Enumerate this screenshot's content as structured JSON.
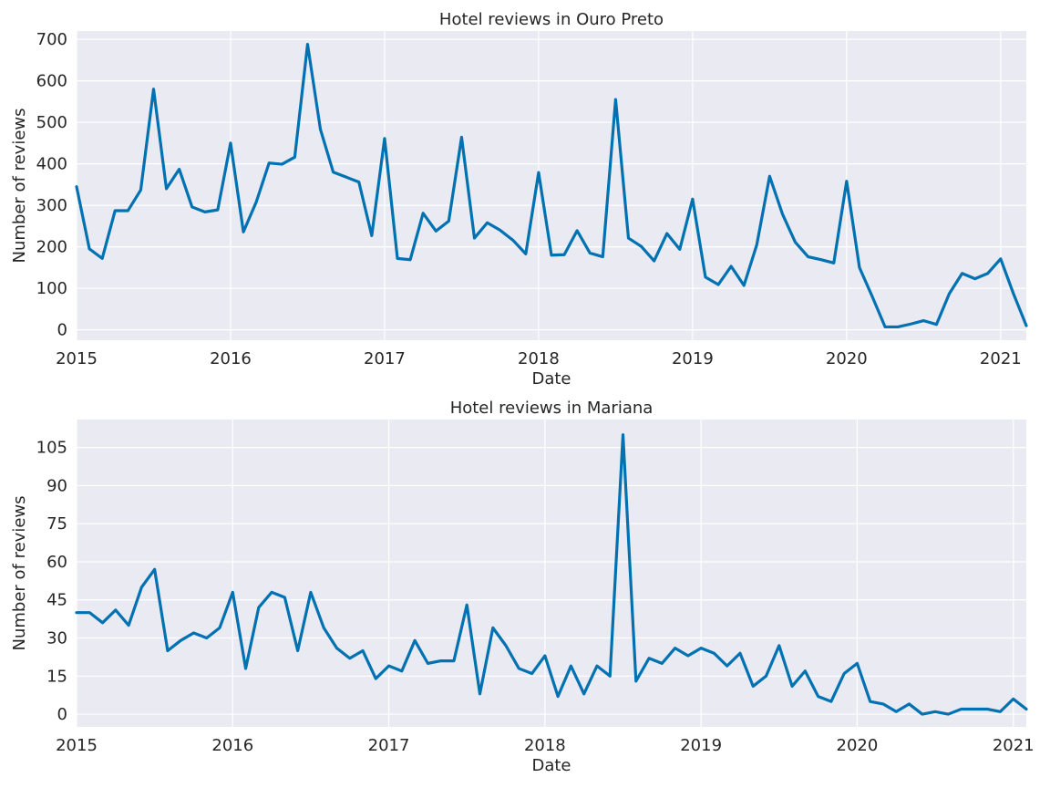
{
  "chart_data": [
    {
      "type": "line",
      "title": "Hotel reviews in Ouro Preto",
      "xlabel": "Date",
      "ylabel": "Number of reviews",
      "xlim": [
        "2015-01",
        "2021-03"
      ],
      "ylim": [
        -25,
        720
      ],
      "x_ticks": [
        "2015",
        "2016",
        "2017",
        "2018",
        "2019",
        "2020",
        "2021"
      ],
      "y_ticks": [
        0,
        100,
        200,
        300,
        400,
        500,
        600,
        700
      ],
      "grid": true,
      "line_color": "#0072b2",
      "background_color": "#eaeaf2",
      "x": [
        "2015-01",
        "2015-02",
        "2015-03",
        "2015-04",
        "2015-05",
        "2015-06",
        "2015-07",
        "2015-08",
        "2015-09",
        "2015-10",
        "2015-11",
        "2015-12",
        "2016-01",
        "2016-02",
        "2016-03",
        "2016-04",
        "2016-05",
        "2016-06",
        "2016-07",
        "2016-08",
        "2016-09",
        "2016-10",
        "2016-11",
        "2016-12",
        "2017-01",
        "2017-02",
        "2017-03",
        "2017-04",
        "2017-05",
        "2017-06",
        "2017-07",
        "2017-08",
        "2017-09",
        "2017-10",
        "2017-11",
        "2017-12",
        "2018-01",
        "2018-02",
        "2018-03",
        "2018-04",
        "2018-05",
        "2018-06",
        "2018-07",
        "2018-08",
        "2018-09",
        "2018-10",
        "2018-11",
        "2018-12",
        "2019-01",
        "2019-02",
        "2019-03",
        "2019-04",
        "2019-05",
        "2019-06",
        "2019-07",
        "2019-08",
        "2019-09",
        "2019-10",
        "2019-11",
        "2019-12",
        "2020-01",
        "2020-02",
        "2020-03",
        "2020-04",
        "2020-05",
        "2020-06",
        "2020-07",
        "2020-08",
        "2020-09",
        "2020-10",
        "2020-11",
        "2020-12",
        "2021-01",
        "2021-02",
        "2021-03"
      ],
      "series": [
        {
          "values": [
            345,
            195,
            172,
            287,
            287,
            337,
            580,
            340,
            387,
            296,
            284,
            289,
            450,
            236,
            308,
            402,
            399,
            416,
            688,
            483,
            380,
            368,
            356,
            227,
            461,
            172,
            169,
            281,
            238,
            262,
            464,
            221,
            258,
            240,
            216,
            183,
            379,
            180,
            181,
            239,
            185,
            176,
            555,
            221,
            201,
            166,
            232,
            194,
            315,
            127,
            109,
            153,
            107,
            205,
            370,
            279,
            211,
            176,
            169,
            161,
            358,
            150,
            80,
            7,
            7,
            14,
            22,
            13,
            87,
            136,
            123,
            136,
            171,
            87,
            10
          ]
        }
      ]
    },
    {
      "type": "line",
      "title": "Hotel reviews in Mariana",
      "xlabel": "Date",
      "ylabel": "Number of reviews",
      "xlim": [
        "2015-01",
        "2021-02"
      ],
      "ylim": [
        -5,
        116
      ],
      "x_ticks": [
        "2015",
        "2016",
        "2017",
        "2018",
        "2019",
        "2020",
        "2021"
      ],
      "y_ticks": [
        0,
        15,
        30,
        45,
        60,
        75,
        90,
        105
      ],
      "grid": true,
      "line_color": "#0072b2",
      "background_color": "#eaeaf2",
      "x": [
        "2015-01",
        "2015-02",
        "2015-03",
        "2015-04",
        "2015-05",
        "2015-06",
        "2015-07",
        "2015-08",
        "2015-09",
        "2015-10",
        "2015-11",
        "2015-12",
        "2016-01",
        "2016-02",
        "2016-03",
        "2016-04",
        "2016-05",
        "2016-06",
        "2016-07",
        "2016-08",
        "2016-09",
        "2016-10",
        "2016-11",
        "2016-12",
        "2017-01",
        "2017-02",
        "2017-03",
        "2017-04",
        "2017-05",
        "2017-06",
        "2017-07",
        "2017-08",
        "2017-09",
        "2017-10",
        "2017-11",
        "2017-12",
        "2018-01",
        "2018-02",
        "2018-03",
        "2018-04",
        "2018-05",
        "2018-06",
        "2018-07",
        "2018-08",
        "2018-09",
        "2018-10",
        "2018-11",
        "2018-12",
        "2019-01",
        "2019-02",
        "2019-03",
        "2019-04",
        "2019-05",
        "2019-06",
        "2019-07",
        "2019-08",
        "2019-09",
        "2019-10",
        "2019-11",
        "2019-12",
        "2020-01",
        "2020-02",
        "2020-03",
        "2020-04",
        "2020-05",
        "2020-06",
        "2020-07",
        "2020-08",
        "2020-09",
        "2020-10",
        "2020-11",
        "2020-12",
        "2021-01",
        "2021-02"
      ],
      "series": [
        {
          "values": [
            40,
            40,
            36,
            41,
            35,
            50,
            57,
            25,
            29,
            32,
            30,
            34,
            48,
            18,
            42,
            48,
            46,
            25,
            48,
            34,
            26,
            22,
            25,
            14,
            19,
            17,
            29,
            20,
            21,
            21,
            43,
            8,
            34,
            27,
            18,
            16,
            23,
            7,
            19,
            8,
            19,
            15,
            110,
            13,
            22,
            20,
            26,
            23,
            26,
            24,
            19,
            24,
            11,
            15,
            27,
            11,
            17,
            7,
            5,
            16,
            20,
            5,
            4,
            1,
            4,
            0,
            1,
            0,
            2,
            2,
            2,
            1,
            6,
            2
          ]
        }
      ]
    }
  ]
}
